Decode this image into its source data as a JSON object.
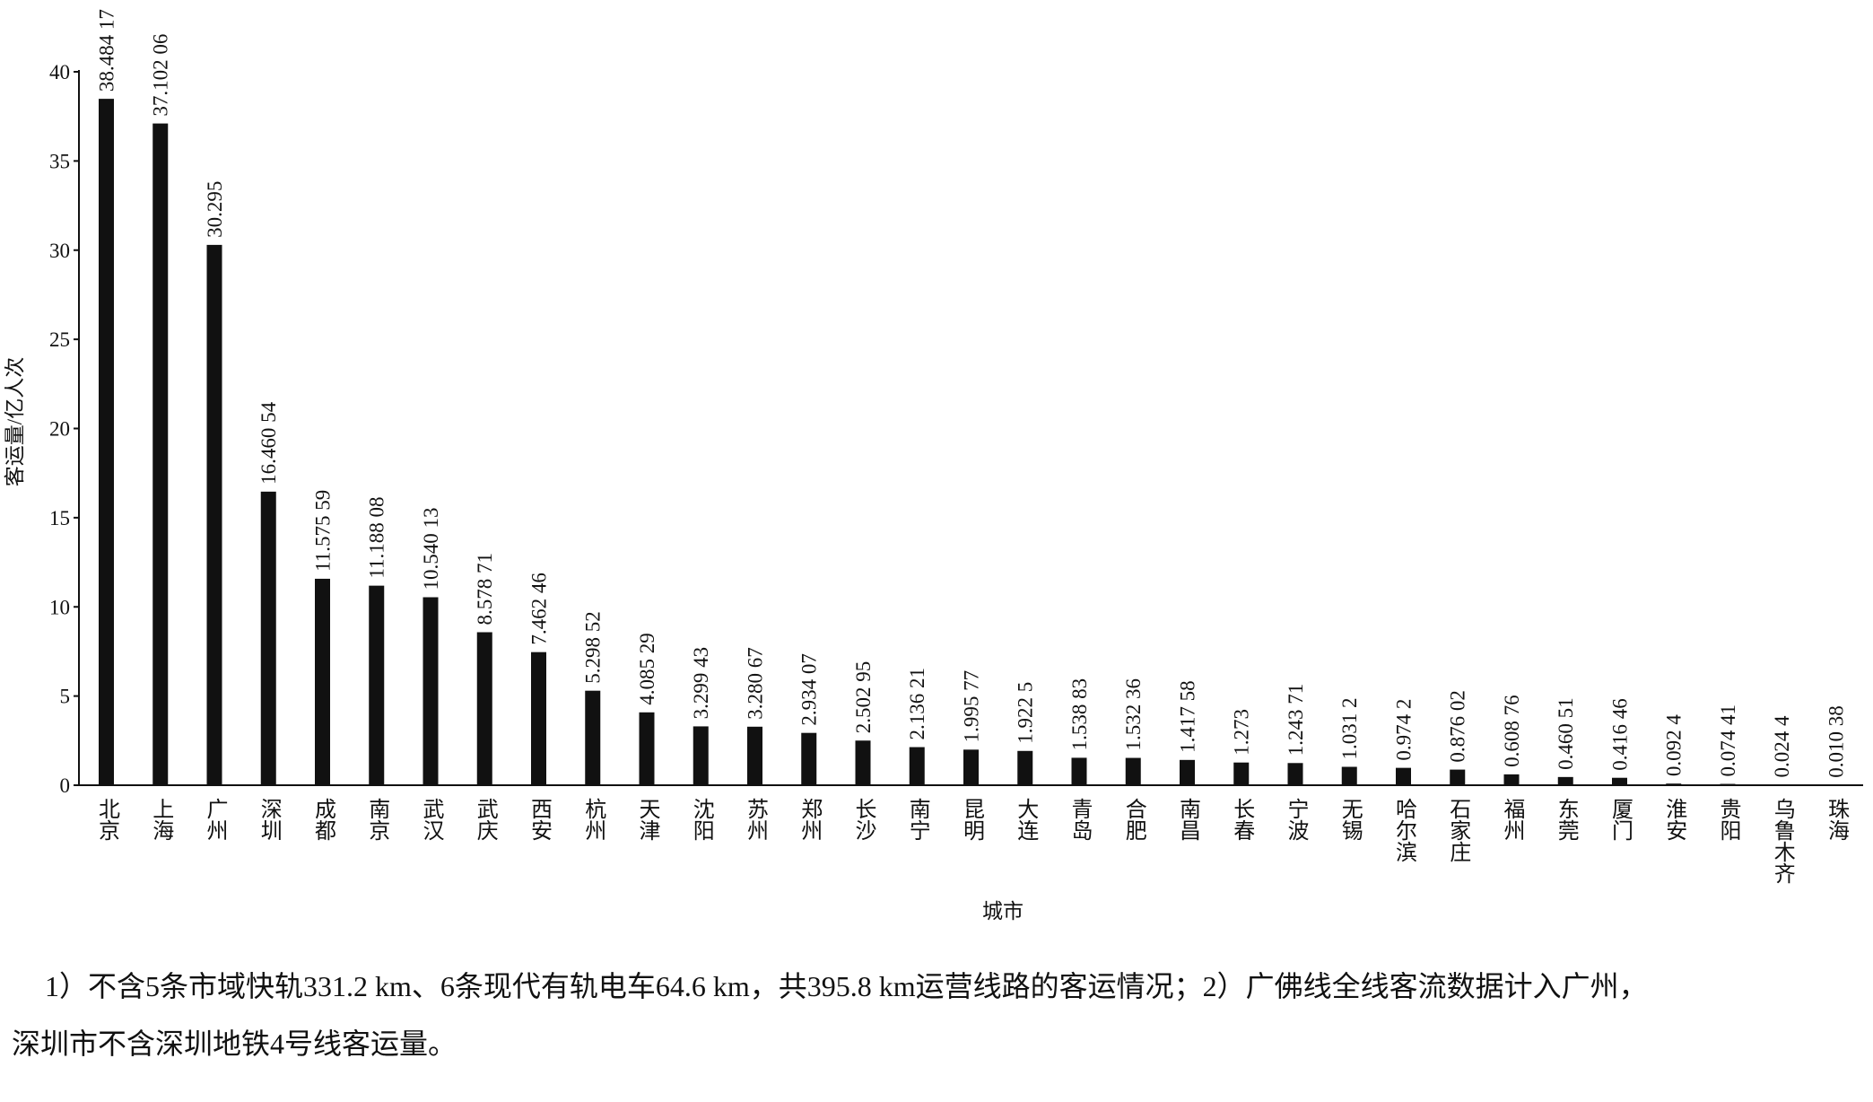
{
  "chart_data": {
    "type": "bar",
    "y_label": "客运量/亿人次",
    "x_label": "城市",
    "categories": [
      "北京",
      "上海",
      "广州",
      "深圳",
      "成都",
      "南京",
      "武汉",
      "武庆",
      "西安",
      "杭州",
      "天津",
      "沈阳",
      "苏州",
      "郑州",
      "长沙",
      "南宁",
      "昆明",
      "大连",
      "青岛",
      "合肥",
      "南昌",
      "长春",
      "宁波",
      "无锡",
      "哈尔滨",
      "石家庄",
      "福州",
      "东莞",
      "厦门",
      "淮安",
      "贵阳",
      "乌鲁木齐",
      "珠海"
    ],
    "values": [
      38.48417,
      37.10206,
      30.295,
      16.46054,
      11.57559,
      11.18808,
      10.54013,
      8.57871,
      7.46246,
      5.29852,
      4.08529,
      3.29943,
      3.28067,
      2.93407,
      2.50295,
      2.13621,
      1.99577,
      1.9225,
      1.53883,
      1.53236,
      1.41758,
      1.273,
      1.24371,
      1.0312,
      0.9742,
      0.87602,
      0.60876,
      0.46051,
      0.41646,
      0.0924,
      0.07441,
      0.0244,
      0.01038
    ],
    "value_labels": [
      "38.484 17",
      "37.102 06",
      "30.295",
      "16.460 54",
      "11.575 59",
      "11.188 08",
      "10.540 13",
      "8.578 71",
      "7.462 46",
      "5.298 52",
      "4.085 29",
      "3.299 43",
      "3.280 67",
      "2.934 07",
      "2.502 95",
      "2.136 21",
      "1.995 77",
      "1.922 5",
      "1.538 83",
      "1.532 36",
      "1.417 58",
      "1.273",
      "1.243 71",
      "1.031 2",
      "0.974 2",
      "0.876 02",
      "0.608 76",
      "0.460 51",
      "0.416 46",
      "0.092 4",
      "0.074 41",
      "0.024 4",
      "0.010 38"
    ],
    "color": "#111111",
    "ylim": [
      0,
      40
    ],
    "yticks": [
      0,
      5,
      10,
      15,
      20,
      25,
      30,
      35,
      40
    ],
    "grid": false,
    "notes": [
      "1）不含5条市域快轨331.2 km、6条现代有轨电车64.6 km，共395.8 km运营线路的客运情况；2）广佛线全线客流数据计入广州，",
      "深圳市不含深圳地铁4号线客运量。"
    ]
  }
}
